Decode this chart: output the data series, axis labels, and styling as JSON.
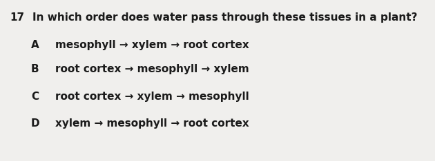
{
  "question_number": "17",
  "question_text": "In which order does water pass through these tissues in a plant?",
  "options": [
    {
      "label": "A",
      "text": "mesophyll → xylem → root cortex"
    },
    {
      "label": "B",
      "text": "root cortex → mesophyll → xylem"
    },
    {
      "label": "C",
      "text": "root cortex → xylem → mesophyll"
    },
    {
      "label": "D",
      "text": "xylem → mesophyll → root cortex"
    }
  ],
  "background_color": "#f0efed",
  "text_color": "#1a1a1a",
  "question_fontsize": 11.0,
  "option_fontsize": 11.0,
  "font_weight": "bold",
  "fig_width": 6.3,
  "fig_height": 2.34,
  "dpi": 100
}
